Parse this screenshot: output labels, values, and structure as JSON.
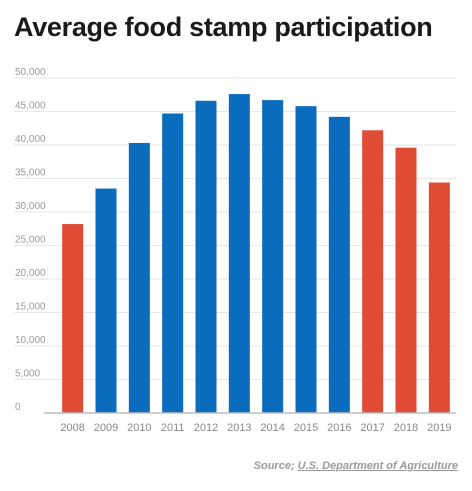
{
  "chart_data": {
    "type": "bar",
    "title": "Average food stamp participation",
    "categories": [
      "2008",
      "2009",
      "2010",
      "2011",
      "2012",
      "2013",
      "2014",
      "2015",
      "2016",
      "2017",
      "2018",
      "2019"
    ],
    "values": [
      28200,
      33500,
      40300,
      44700,
      46600,
      47600,
      46700,
      45800,
      44200,
      42200,
      39600,
      34400
    ],
    "bar_colors": [
      "#e04b36",
      "#0b6bbd",
      "#0b6bbd",
      "#0b6bbd",
      "#0b6bbd",
      "#0b6bbd",
      "#0b6bbd",
      "#0b6bbd",
      "#0b6bbd",
      "#e04b36",
      "#e04b36",
      "#e04b36"
    ],
    "y_ticks": [
      "0",
      "5,000",
      "10,000",
      "15,000",
      "20,000",
      "25,000",
      "30,000",
      "35,000",
      "40,000",
      "45,000",
      "50,000"
    ],
    "ylim": [
      0,
      50000
    ],
    "grid": true,
    "xlabel": "",
    "ylabel": ""
  },
  "source": {
    "prefix": "Source; ",
    "link_text": "U.S. Department of Agriculture"
  }
}
